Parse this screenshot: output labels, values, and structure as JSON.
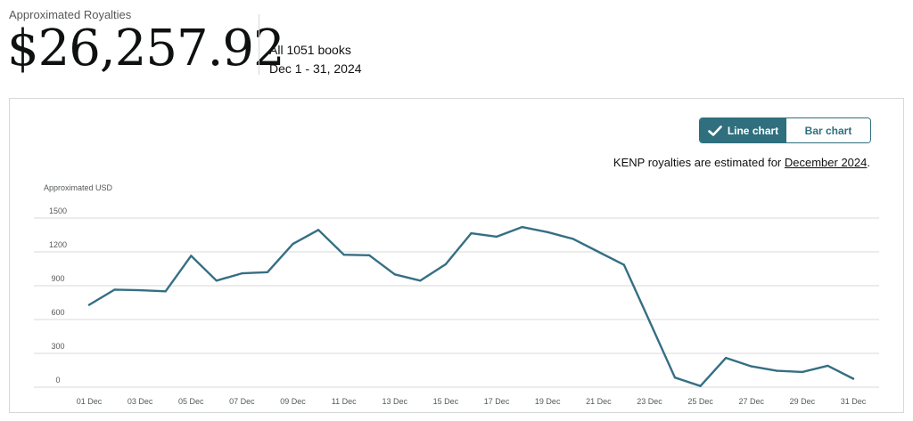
{
  "header": {
    "label": "Approximated Royalties",
    "amount": "$26,257.92",
    "books": "All 1051 books",
    "date_range": "Dec 1 - 31, 2024"
  },
  "toggle": {
    "line_label": "Line chart",
    "bar_label": "Bar chart",
    "active": "line"
  },
  "note": {
    "prefix": "KENP royalties are estimated for ",
    "link": "December 2024",
    "suffix": "."
  },
  "colors": {
    "accent": "#2f6f7e",
    "line": "#356f84",
    "grid": "#d9d9d9"
  },
  "chart_data": {
    "type": "line",
    "ylabel": "Approximated USD",
    "ylim": [
      0,
      1500
    ],
    "yticks": [
      0,
      300,
      600,
      900,
      1200,
      1500
    ],
    "x_tick_labels": [
      "01 Dec",
      "03 Dec",
      "05 Dec",
      "07 Dec",
      "09 Dec",
      "11 Dec",
      "13 Dec",
      "15 Dec",
      "17 Dec",
      "19 Dec",
      "21 Dec",
      "23 Dec",
      "25 Dec",
      "27 Dec",
      "29 Dec",
      "31 Dec"
    ],
    "days": [
      1,
      2,
      3,
      4,
      5,
      6,
      7,
      8,
      9,
      10,
      11,
      12,
      13,
      14,
      15,
      16,
      17,
      18,
      19,
      20,
      21,
      22,
      23,
      24,
      25,
      26,
      27,
      28,
      29,
      30,
      31
    ],
    "series": [
      {
        "values": [
          730,
          865,
          860,
          850,
          1165,
          945,
          1010,
          1020,
          1270,
          1395,
          1175,
          1170,
          1000,
          945,
          1090,
          1365,
          1335,
          1420,
          1375,
          1315,
          1200,
          1085,
          585,
          85,
          10,
          260,
          185,
          145,
          135,
          190,
          75
        ]
      }
    ]
  }
}
